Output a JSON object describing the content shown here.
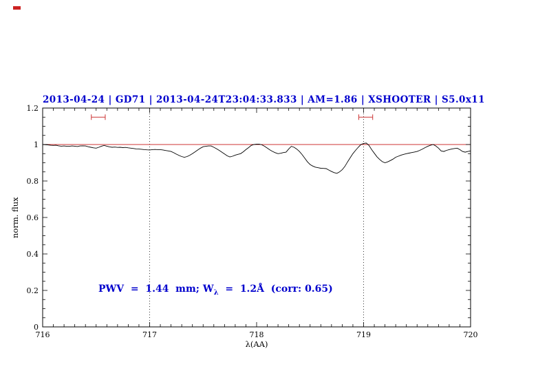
{
  "title": "2013-04-24 | GD71 | 2013-04-24T23:04:33.833 | AM=1.86 | XSHOOTER | S5.0x11",
  "annotation": {
    "pre": "PWV  =  1.44  mm; W",
    "sub": "λ",
    "post": "  =  1.2Å  (corr: 0.65)"
  },
  "colors": {
    "accent_blue": "#0000cd",
    "continuum_red": "#cc3333",
    "spectrum_black": "#000000"
  },
  "chart_data": {
    "type": "line",
    "title": "2013-04-24 | GD71 | 2013-04-24T23:04:33.833 | AM=1.86 | XSHOOTER | S5.0x11",
    "xlabel": "λ(AA)",
    "ylabel": "norm. flux",
    "xlim": [
      716,
      720
    ],
    "ylim": [
      0,
      1.2
    ],
    "x_ticks": [
      716,
      717,
      718,
      719,
      720
    ],
    "x_tick_labels": [
      "716",
      "717",
      "718",
      "719",
      "720"
    ],
    "y_ticks": [
      0,
      0.2,
      0.4,
      0.6,
      0.8,
      1,
      1.2
    ],
    "y_tick_labels": [
      "0",
      "0.2",
      "0.4",
      "0.6",
      "0.8",
      "1",
      "1.2"
    ],
    "x_minor_step": 0.1,
    "y_minor_step": 0.05,
    "grid": false,
    "vlines": [
      717,
      719
    ],
    "continuum_y": 1.0,
    "markers": {
      "y": 1.15,
      "items": [
        {
          "center": 716.52,
          "half_width": 0.065
        },
        {
          "center": 719.02,
          "half_width": 0.065
        }
      ]
    },
    "series": [
      {
        "name": "normalized spectrum",
        "x_start": 716.0,
        "x_step": 0.025,
        "y": [
          1.0,
          0.999,
          0.998,
          0.996,
          0.995,
          0.996,
          0.993,
          0.991,
          0.992,
          0.99,
          0.99,
          0.992,
          0.991,
          0.989,
          0.992,
          0.993,
          0.992,
          0.988,
          0.985,
          0.982,
          0.98,
          0.985,
          0.991,
          0.995,
          0.991,
          0.987,
          0.985,
          0.986,
          0.984,
          0.985,
          0.983,
          0.984,
          0.982,
          0.98,
          0.978,
          0.976,
          0.975,
          0.974,
          0.972,
          0.971,
          0.97,
          0.972,
          0.973,
          0.972,
          0.972,
          0.97,
          0.967,
          0.965,
          0.962,
          0.955,
          0.947,
          0.94,
          0.934,
          0.93,
          0.934,
          0.941,
          0.95,
          0.96,
          0.97,
          0.98,
          0.988,
          0.99,
          0.992,
          0.992,
          0.985,
          0.977,
          0.968,
          0.958,
          0.948,
          0.938,
          0.932,
          0.936,
          0.942,
          0.946,
          0.95,
          0.96,
          0.972,
          0.983,
          0.995,
          1.0,
          1.002,
          1.002,
          0.998,
          0.99,
          0.98,
          0.97,
          0.962,
          0.955,
          0.95,
          0.952,
          0.956,
          0.958,
          0.975,
          0.99,
          0.985,
          0.975,
          0.962,
          0.945,
          0.925,
          0.905,
          0.89,
          0.882,
          0.876,
          0.873,
          0.87,
          0.869,
          0.868,
          0.86,
          0.852,
          0.846,
          0.842,
          0.85,
          0.862,
          0.88,
          0.905,
          0.928,
          0.95,
          0.968,
          0.985,
          1.0,
          1.006,
          1.008,
          0.995,
          0.972,
          0.952,
          0.933,
          0.918,
          0.906,
          0.9,
          0.905,
          0.912,
          0.92,
          0.93,
          0.936,
          0.942,
          0.946,
          0.95,
          0.953,
          0.956,
          0.959,
          0.962,
          0.968,
          0.975,
          0.983,
          0.99,
          0.996,
          1.0,
          0.992,
          0.98,
          0.965,
          0.962,
          0.968,
          0.972,
          0.976,
          0.978,
          0.98,
          0.972,
          0.962,
          0.958,
          0.962,
          0.965
        ]
      }
    ]
  }
}
